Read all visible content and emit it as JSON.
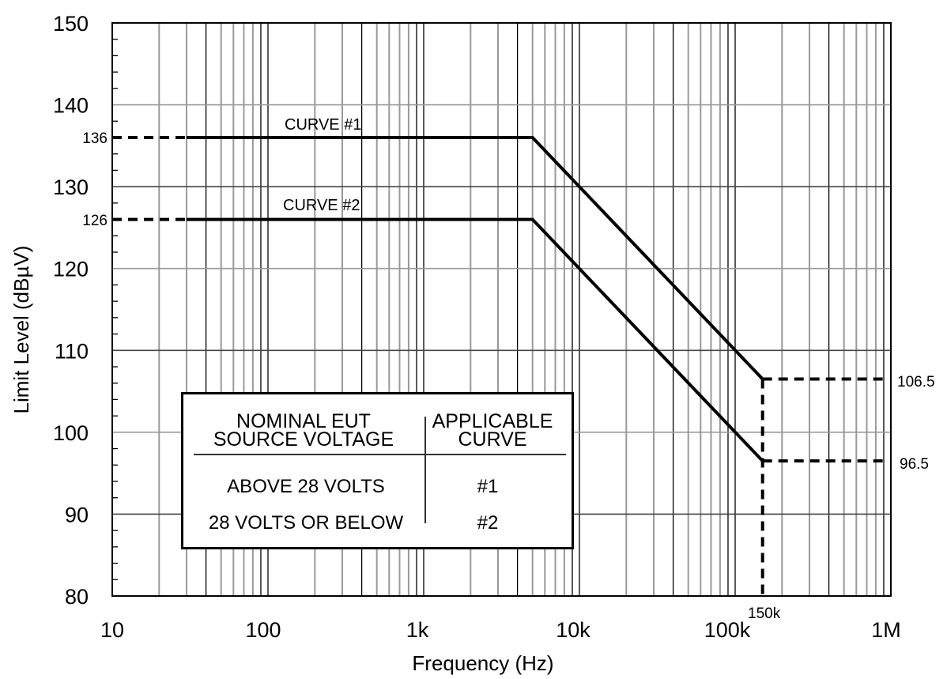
{
  "chart_data": {
    "type": "line",
    "title": "",
    "xlabel": "Frequency (Hz)",
    "ylabel": "Limit Level (dBµV)",
    "xscale": "log",
    "xlim": [
      10,
      1000000
    ],
    "ylim": [
      80,
      150
    ],
    "grid": true,
    "x_tick_labels": [
      "10",
      "100",
      "1k",
      "10k",
      "100k",
      "1M"
    ],
    "x_tick_values": [
      10,
      100,
      1000,
      10000,
      100000,
      1000000
    ],
    "y_tick_labels": [
      "80",
      "90",
      "100",
      "110",
      "120",
      "130",
      "140",
      "150"
    ],
    "y_tick_values": [
      80,
      90,
      100,
      110,
      120,
      130,
      140,
      150
    ],
    "series": [
      {
        "name": "CURVE #1",
        "x": [
          30,
          5000,
          150000
        ],
        "y": [
          136,
          136,
          106.5
        ]
      },
      {
        "name": "CURVE #2",
        "x": [
          30,
          5000,
          150000
        ],
        "y": [
          126,
          126,
          96.5
        ]
      }
    ],
    "annotations": [
      {
        "text": "136",
        "x": 10,
        "y": 136,
        "kind": "dashed-extension-left"
      },
      {
        "text": "126",
        "x": 10,
        "y": 126,
        "kind": "dashed-extension-left"
      },
      {
        "text": "106.5",
        "x": 1000000,
        "y": 106.5,
        "kind": "dashed-extension-right"
      },
      {
        "text": "96.5",
        "x": 1000000,
        "y": 96.5,
        "kind": "dashed-extension-right"
      },
      {
        "text": "150k",
        "x": 150000,
        "y": 80,
        "kind": "dashed-vertical-marker"
      }
    ],
    "legend": {
      "position": "lower-left (inside plot)",
      "headers": [
        "NOMINAL EUT SOURCE VOLTAGE",
        "APPLICABLE CURVE"
      ],
      "rows": [
        {
          "voltage": "ABOVE 28 VOLTS",
          "curve": "#1"
        },
        {
          "voltage": "28 VOLTS OR BELOW",
          "curve": "#2"
        }
      ]
    }
  },
  "labels": {
    "xlabel": "Frequency (Hz)",
    "ylabel": "Limit Level (dBµV)",
    "curve1": "CURVE #1",
    "curve2": "CURVE #2",
    "left_136": "136",
    "left_126": "126",
    "right_1065": "106.5",
    "right_965": "96.5",
    "marker_150k": "150k"
  },
  "legend": {
    "header_left_line1": "NOMINAL EUT",
    "header_left_line2": "SOURCE VOLTAGE",
    "header_right_line1": "APPLICABLE",
    "header_right_line2": "CURVE",
    "row1_voltage": "ABOVE 28 VOLTS",
    "row1_curve": "#1",
    "row2_voltage": "28 VOLTS OR BELOW",
    "row2_curve": "#2"
  },
  "colors": {
    "curve": "#000000",
    "grid_major": "#000000",
    "grid_minor": "#9a9a9a",
    "background": "#ffffff"
  }
}
